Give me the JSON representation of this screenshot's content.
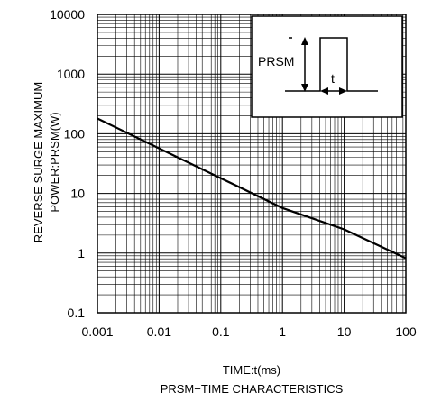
{
  "chart_data": {
    "type": "line",
    "title": "PRSM−TIME CHARACTERISTICS",
    "xlabel": "TIME:t(ms)",
    "ylabel_lines": [
      "REVERSE   SURGE MAXIMUM",
      "POWER:PRSM(W)"
    ],
    "x_scale": "log",
    "y_scale": "log",
    "xlim": [
      0.001,
      100
    ],
    "ylim": [
      0.1,
      10000
    ],
    "x_ticks": [
      0.001,
      0.01,
      0.1,
      1,
      10,
      100
    ],
    "x_tick_labels": [
      "0.001",
      "0.01",
      "0.1",
      "1",
      "10",
      "100"
    ],
    "y_ticks": [
      0.1,
      1,
      10,
      100,
      1000,
      10000
    ],
    "y_tick_labels": [
      "0.1",
      "1",
      "10",
      "100",
      "1000",
      "10000"
    ],
    "grid": true,
    "series": [
      {
        "x": [
          0.001,
          0.01,
          0.1,
          1,
          10,
          100
        ],
        "y": [
          180,
          57,
          18,
          5.7,
          2.5,
          0.82
        ]
      }
    ],
    "inset": {
      "prsm_label": "PRSM",
      "t_label": "t"
    }
  }
}
